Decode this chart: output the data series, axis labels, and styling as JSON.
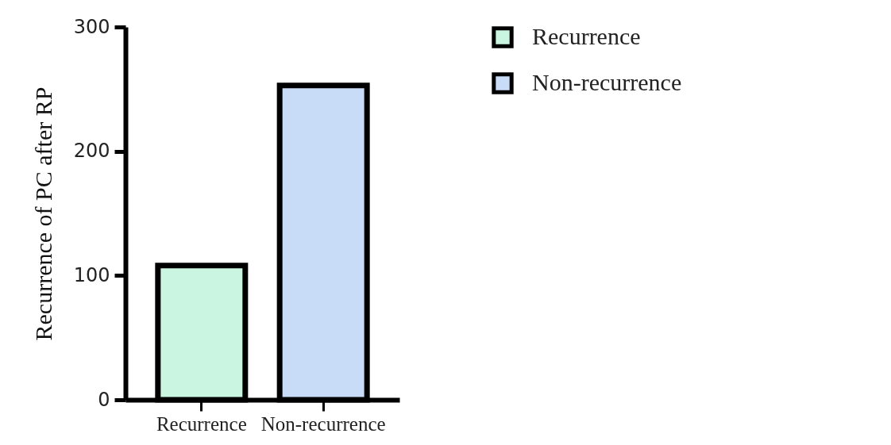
{
  "chart_data": {
    "type": "bar",
    "ylabel": "Recurrence of PC after RP",
    "categories": [
      "Recurrence",
      "Non-recurrence"
    ],
    "series": [
      {
        "name": "Recurrence",
        "color": "#c9f5e1",
        "values": [
          108,
          null
        ]
      },
      {
        "name": "Non-recurrence",
        "color": "#c8dcf7",
        "values": [
          null,
          253
        ]
      }
    ],
    "ylim": [
      0,
      300
    ],
    "yticks": [
      0,
      100,
      200,
      300
    ],
    "legend": "top right",
    "grid": false
  }
}
